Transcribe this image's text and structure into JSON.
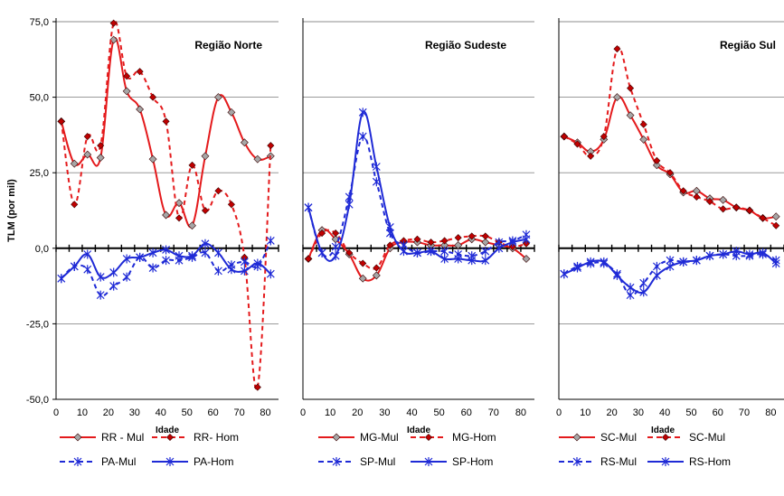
{
  "chart_data": [
    {
      "type": "line",
      "title": "Região Norte",
      "xlabel": "Idade",
      "ylabel": "TLM (por mil)",
      "xlim": [
        0,
        85
      ],
      "ylim": [
        -50,
        75
      ],
      "xticks": [
        0,
        10,
        20,
        30,
        40,
        50,
        60,
        70,
        80
      ],
      "yticks": [
        -50,
        -25,
        0,
        25,
        50,
        75
      ],
      "ytick_labels": [
        "-50,0",
        "-25,0",
        "0,0",
        "25,0",
        "50,0",
        "75,0"
      ],
      "grid": "horizontal",
      "x": [
        2,
        7,
        12,
        17,
        22,
        27,
        32,
        37,
        42,
        47,
        52,
        57,
        62,
        67,
        72,
        77,
        82
      ],
      "series": [
        {
          "name": "RR - Mul",
          "color": "#e41a1c",
          "style": "solid",
          "marker": "diamond-gray",
          "values": [
            42,
            28,
            31,
            30,
            69,
            52,
            46,
            29.5,
            11,
            15,
            7.5,
            30.5,
            50,
            45,
            35,
            29.5,
            30.5
          ]
        },
        {
          "name": "RR- Hom",
          "color": "#e41a1c",
          "style": "dashed",
          "marker": "diamond-red",
          "values": [
            42,
            14.5,
            37,
            34,
            74.5,
            57,
            58.5,
            50,
            42,
            10,
            27.5,
            12.5,
            19,
            14.5,
            -3,
            -46,
            34
          ]
        },
        {
          "name": "PA-Mul",
          "color": "#1f2ad6",
          "style": "dashed",
          "marker": "asterisk",
          "values": [
            -10,
            -6,
            -7,
            -15.5,
            -12.5,
            -9.5,
            -3,
            -6.5,
            -4,
            -4,
            -3,
            -1.5,
            -7.5,
            -5.5,
            -4.5,
            -6,
            2.5
          ]
        },
        {
          "name": "PA-Hom",
          "color": "#1f2ad6",
          "style": "solid",
          "marker": "asterisk",
          "values": [
            -10,
            -6,
            -2,
            -9.5,
            -8,
            -3.5,
            -3,
            -1.5,
            -0.5,
            -2.5,
            -2.5,
            1.5,
            -1.5,
            -7,
            -7.5,
            -5,
            -8.5
          ]
        }
      ]
    },
    {
      "type": "line",
      "title": "Região Sudeste",
      "xlabel": "Idade",
      "xlim": [
        0,
        85
      ],
      "ylim": [
        -50,
        75
      ],
      "xticks": [
        0,
        10,
        20,
        30,
        40,
        50,
        60,
        70,
        80
      ],
      "grid": "horizontal",
      "x": [
        2,
        7,
        12,
        17,
        22,
        27,
        32,
        37,
        42,
        47,
        52,
        57,
        62,
        67,
        72,
        77,
        82
      ],
      "series": [
        {
          "name": "MG-Mul",
          "color": "#e41a1c",
          "style": "solid",
          "marker": "diamond-gray",
          "values": [
            -3.5,
            6,
            3,
            -2,
            -10,
            -9,
            0,
            2,
            2,
            1,
            1,
            1,
            3,
            2,
            1,
            0,
            -3.5
          ]
        },
        {
          "name": "MG-Hom",
          "color": "#e41a1c",
          "style": "dashed",
          "marker": "diamond-red",
          "values": [
            -3.5,
            5,
            5,
            -1.5,
            -5,
            -6.5,
            1,
            2.5,
            3,
            2,
            2.5,
            3.5,
            4,
            4,
            2,
            0.5,
            1.5
          ]
        },
        {
          "name": "SP-Mul",
          "color": "#1f2ad6",
          "style": "dashed",
          "marker": "asterisk",
          "values": [
            13.5,
            -1.5,
            0.5,
            17,
            37,
            22,
            5,
            1,
            -1.5,
            -1,
            -1,
            -2,
            -2.5,
            -1,
            2,
            2.5,
            4.5
          ]
        },
        {
          "name": "SP-Hom",
          "color": "#1f2ad6",
          "style": "solid",
          "marker": "asterisk",
          "values": [
            13.5,
            -1.5,
            -2.5,
            14.5,
            45,
            27,
            7,
            -1,
            -1.5,
            -1,
            -3.5,
            -3.5,
            -4,
            -4,
            0,
            2,
            3
          ]
        }
      ]
    },
    {
      "type": "line",
      "title": "Região Sul",
      "xlabel": "Idade",
      "xlim": [
        0,
        85
      ],
      "ylim": [
        -50,
        75
      ],
      "xticks": [
        0,
        10,
        20,
        30,
        40,
        50,
        60,
        70,
        80
      ],
      "grid": "horizontal",
      "x": [
        2,
        7,
        12,
        17,
        22,
        27,
        32,
        37,
        42,
        47,
        52,
        57,
        62,
        67,
        72,
        77,
        82
      ],
      "series": [
        {
          "name": "SC-Mul",
          "color": "#e41a1c",
          "style": "solid",
          "marker": "diamond-gray",
          "values": [
            37,
            35,
            32,
            36,
            50,
            44,
            36,
            27.5,
            24.5,
            18.5,
            19,
            16.5,
            16,
            13.5,
            12.5,
            10,
            10.5
          ]
        },
        {
          "name": "SC-Mul",
          "color": "#e41a1c",
          "style": "dashed",
          "marker": "diamond-red",
          "values": [
            37,
            34.5,
            30.5,
            37,
            66,
            53,
            41,
            29,
            25,
            19,
            17,
            15.5,
            13,
            13.5,
            12.5,
            10,
            7.5
          ]
        },
        {
          "name": "RS-Mul",
          "color": "#1f2ad6",
          "style": "dashed",
          "marker": "asterisk",
          "values": [
            -8.5,
            -6,
            -5,
            -5,
            -8.5,
            -15.5,
            -11.5,
            -6,
            -4,
            -4.5,
            -4,
            -2.5,
            -2,
            -2.5,
            -2.5,
            -2,
            -4
          ]
        },
        {
          "name": "RS-Hom",
          "color": "#1f2ad6",
          "style": "solid",
          "marker": "asterisk",
          "values": [
            -8.5,
            -6.5,
            -4.5,
            -4.5,
            -9,
            -13,
            -14.5,
            -9,
            -6,
            -4.5,
            -4,
            -2.5,
            -2,
            -1,
            -2,
            -1.5,
            -5
          ]
        }
      ]
    }
  ]
}
